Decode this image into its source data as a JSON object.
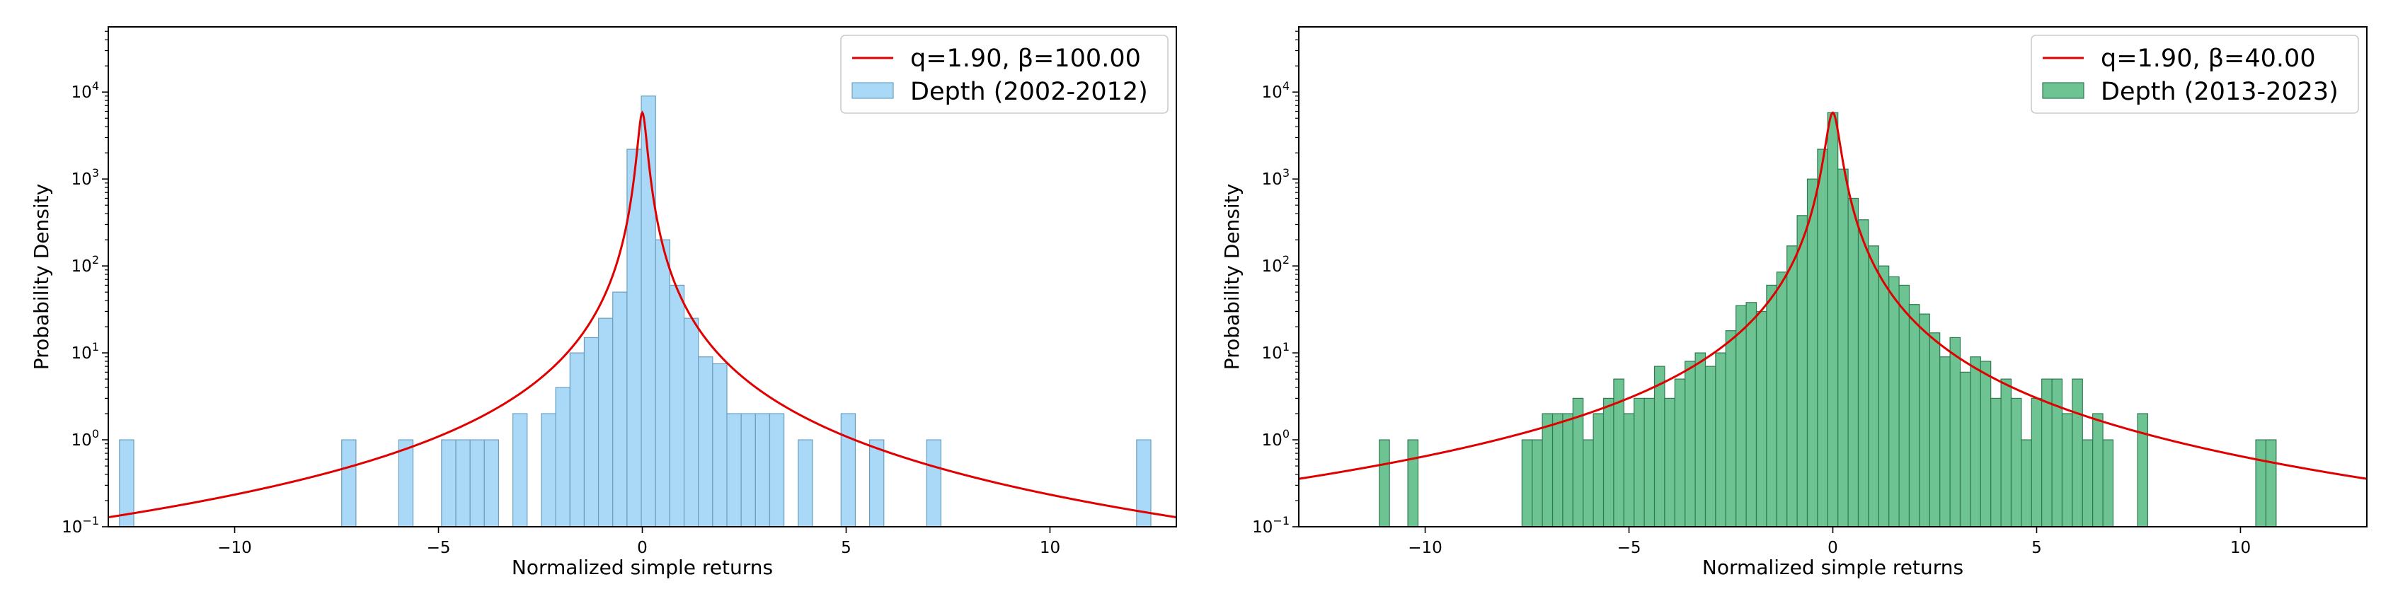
{
  "chart_data": [
    {
      "type": "histogram",
      "xlabel": "Normalized simple returns",
      "ylabel": "Probability Density",
      "xlim": [
        -13.1,
        13.1
      ],
      "ylim_log10": [
        -1,
        4.75
      ],
      "yscale": "log",
      "xticks": [
        "−10",
        "−5",
        "0",
        "5",
        "10"
      ],
      "xtick_values": [
        -10,
        -5,
        0,
        5,
        10
      ],
      "yticks": [
        "10^-1",
        "10^0",
        "10^1",
        "10^2",
        "10^3",
        "10^4"
      ],
      "ytick_exps": [
        -1,
        0,
        1,
        2,
        3,
        4
      ],
      "legend_location": "upper right",
      "hist_color": "#a9d9f7",
      "hist_edge": "#6a9fbf",
      "curve_color": "#e00000",
      "curve": {
        "label": "q=1.90, β=100.00",
        "q": 1.9,
        "beta": 100.0,
        "peak": 5800
      },
      "hist": {
        "label": "Depth (2002-2012)",
        "bin_width": 0.35,
        "bins": [
          {
            "x": -12.65,
            "y": 1
          },
          {
            "x": -7.2,
            "y": 1
          },
          {
            "x": -5.8,
            "y": 1
          },
          {
            "x": -4.75,
            "y": 1
          },
          {
            "x": -4.4,
            "y": 1
          },
          {
            "x": -4.05,
            "y": 1
          },
          {
            "x": -3.7,
            "y": 1
          },
          {
            "x": -3.0,
            "y": 2
          },
          {
            "x": -2.3,
            "y": 2
          },
          {
            "x": -1.95,
            "y": 4
          },
          {
            "x": -1.6,
            "y": 10
          },
          {
            "x": -1.25,
            "y": 15
          },
          {
            "x": -0.9,
            "y": 25
          },
          {
            "x": -0.55,
            "y": 50
          },
          {
            "x": -0.2,
            "y": 2200
          },
          {
            "x": 0.15,
            "y": 9000
          },
          {
            "x": 0.5,
            "y": 200
          },
          {
            "x": 0.85,
            "y": 60
          },
          {
            "x": 1.2,
            "y": 25
          },
          {
            "x": 1.55,
            "y": 9
          },
          {
            "x": 1.9,
            "y": 7.5
          },
          {
            "x": 2.25,
            "y": 2
          },
          {
            "x": 2.6,
            "y": 2
          },
          {
            "x": 2.95,
            "y": 2
          },
          {
            "x": 3.3,
            "y": 2
          },
          {
            "x": 4.0,
            "y": 1
          },
          {
            "x": 5.05,
            "y": 2
          },
          {
            "x": 5.75,
            "y": 1
          },
          {
            "x": 7.15,
            "y": 1
          },
          {
            "x": 12.3,
            "y": 1
          }
        ]
      }
    },
    {
      "type": "histogram",
      "xlabel": "Normalized simple returns",
      "ylabel": "Probability Density",
      "xlim": [
        -13.1,
        13.1
      ],
      "ylim_log10": [
        -1,
        4.75
      ],
      "yscale": "log",
      "xticks": [
        "−10",
        "−5",
        "0",
        "5",
        "10"
      ],
      "xtick_values": [
        -10,
        -5,
        0,
        5,
        10
      ],
      "yticks": [
        "10^-1",
        "10^0",
        "10^1",
        "10^2",
        "10^3",
        "10^4"
      ],
      "ytick_exps": [
        -1,
        0,
        1,
        2,
        3,
        4
      ],
      "legend_location": "upper right",
      "hist_color": "#6dc492",
      "hist_edge": "#2f7a50",
      "curve_color": "#e00000",
      "curve": {
        "label": "q=1.90, β=40.00",
        "q": 1.9,
        "beta": 40.0,
        "peak": 5800
      },
      "hist": {
        "label": "Depth (2013-2023)",
        "bin_width": 0.25,
        "bins": [
          {
            "x": -11.0,
            "y": 1
          },
          {
            "x": -10.3,
            "y": 1
          },
          {
            "x": -7.5,
            "y": 1
          },
          {
            "x": -7.25,
            "y": 1
          },
          {
            "x": -7.0,
            "y": 2
          },
          {
            "x": -6.75,
            "y": 2
          },
          {
            "x": -6.5,
            "y": 2
          },
          {
            "x": -6.25,
            "y": 3
          },
          {
            "x": -6.0,
            "y": 1
          },
          {
            "x": -5.75,
            "y": 2
          },
          {
            "x": -5.5,
            "y": 3
          },
          {
            "x": -5.25,
            "y": 5
          },
          {
            "x": -5.0,
            "y": 2
          },
          {
            "x": -4.75,
            "y": 3
          },
          {
            "x": -4.5,
            "y": 3
          },
          {
            "x": -4.25,
            "y": 7
          },
          {
            "x": -4.0,
            "y": 3
          },
          {
            "x": -3.75,
            "y": 5
          },
          {
            "x": -3.5,
            "y": 8
          },
          {
            "x": -3.25,
            "y": 10
          },
          {
            "x": -3.0,
            "y": 7
          },
          {
            "x": -2.75,
            "y": 10
          },
          {
            "x": -2.5,
            "y": 18
          },
          {
            "x": -2.25,
            "y": 35
          },
          {
            "x": -2.0,
            "y": 38
          },
          {
            "x": -1.75,
            "y": 30
          },
          {
            "x": -1.5,
            "y": 60
          },
          {
            "x": -1.25,
            "y": 85
          },
          {
            "x": -1.0,
            "y": 170
          },
          {
            "x": -0.75,
            "y": 380
          },
          {
            "x": -0.5,
            "y": 1000
          },
          {
            "x": -0.25,
            "y": 2200
          },
          {
            "x": 0.0,
            "y": 5800
          },
          {
            "x": 0.25,
            "y": 1300
          },
          {
            "x": 0.5,
            "y": 600
          },
          {
            "x": 0.75,
            "y": 340
          },
          {
            "x": 1.0,
            "y": 170
          },
          {
            "x": 1.25,
            "y": 100
          },
          {
            "x": 1.5,
            "y": 75
          },
          {
            "x": 1.75,
            "y": 60
          },
          {
            "x": 2.0,
            "y": 36
          },
          {
            "x": 2.25,
            "y": 28
          },
          {
            "x": 2.5,
            "y": 17
          },
          {
            "x": 2.75,
            "y": 9
          },
          {
            "x": 3.0,
            "y": 15
          },
          {
            "x": 3.25,
            "y": 6
          },
          {
            "x": 3.5,
            "y": 9
          },
          {
            "x": 3.75,
            "y": 8
          },
          {
            "x": 4.0,
            "y": 3
          },
          {
            "x": 4.25,
            "y": 5
          },
          {
            "x": 4.5,
            "y": 3
          },
          {
            "x": 4.75,
            "y": 1
          },
          {
            "x": 5.0,
            "y": 3
          },
          {
            "x": 5.25,
            "y": 5
          },
          {
            "x": 5.5,
            "y": 5
          },
          {
            "x": 5.75,
            "y": 2
          },
          {
            "x": 6.0,
            "y": 5
          },
          {
            "x": 6.25,
            "y": 1
          },
          {
            "x": 6.5,
            "y": 2
          },
          {
            "x": 6.75,
            "y": 1
          },
          {
            "x": 7.6,
            "y": 2
          },
          {
            "x": 10.5,
            "y": 1
          },
          {
            "x": 10.75,
            "y": 1
          }
        ]
      }
    }
  ]
}
